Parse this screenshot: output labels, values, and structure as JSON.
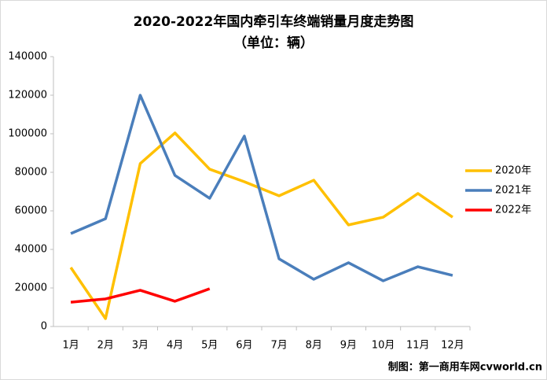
{
  "chart_data": {
    "type": "line",
    "title": "2020-2022年国内牵引车终端销量月度走势图",
    "subtitle": "（单位：辆）",
    "categories": [
      "1月",
      "2月",
      "3月",
      "4月",
      "5月",
      "6月",
      "7月",
      "8月",
      "9月",
      "10月",
      "11月",
      "12月"
    ],
    "series": [
      {
        "name": "2020年",
        "color": "#ffc000",
        "values": [
          30600,
          4100,
          84500,
          100400,
          81600,
          75100,
          67800,
          75900,
          52700,
          56700,
          69000,
          56700
        ]
      },
      {
        "name": "2021年",
        "color": "#4a7ebb",
        "values": [
          48200,
          55900,
          120000,
          78400,
          66500,
          98800,
          35100,
          24500,
          33100,
          23700,
          31000,
          26500
        ]
      },
      {
        "name": "2022年",
        "color": "#ff0000",
        "values": [
          12600,
          14300,
          18800,
          13100,
          19600,
          null,
          null,
          null,
          null,
          null,
          null,
          null
        ]
      }
    ],
    "ylim": [
      0,
      140000
    ],
    "yticks": [
      0,
      20000,
      40000,
      60000,
      80000,
      100000,
      120000,
      140000
    ],
    "legend": "right",
    "footer": "制图：第一商用车网cvworld.cn"
  }
}
